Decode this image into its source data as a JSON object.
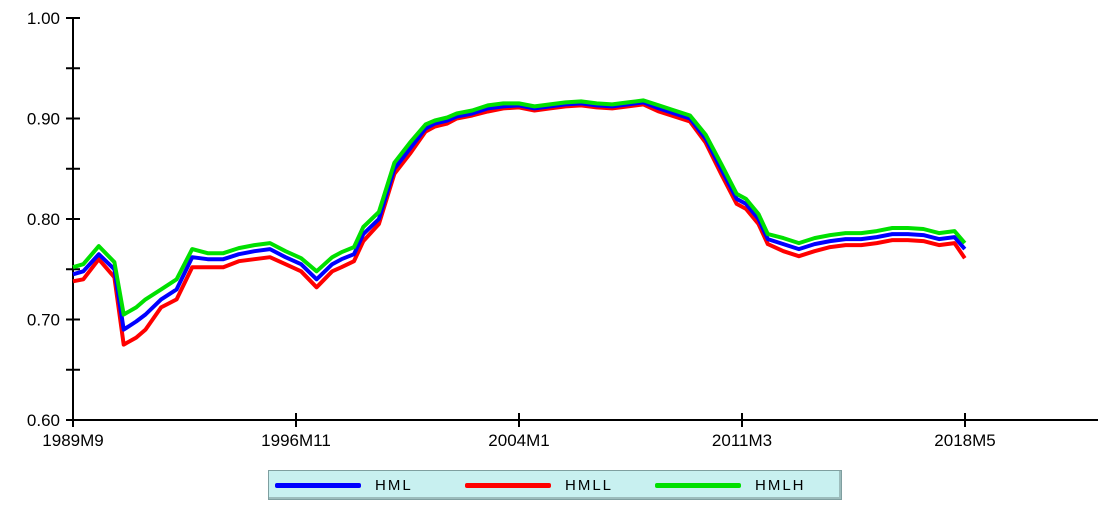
{
  "chart_data": {
    "type": "line",
    "title": "",
    "xlabel": "",
    "ylabel": "",
    "ylim": [
      0.6,
      1.0
    ],
    "yticks": [
      "0.60",
      "0.70",
      "0.80",
      "0.90",
      "1.00"
    ],
    "xticks": [
      "1989M9",
      "1996M11",
      "2004M1",
      "2011M3",
      "2018M5"
    ],
    "grid": false,
    "legend": "bottom-center",
    "x": [
      1989.67,
      1990.0,
      1990.5,
      1991.0,
      1991.3,
      1991.7,
      1992.0,
      1992.5,
      1993.0,
      1993.5,
      1994.0,
      1994.5,
      1995.0,
      1995.5,
      1996.0,
      1996.5,
      1997.0,
      1997.5,
      1998.0,
      1998.3,
      1998.7,
      1999.0,
      1999.5,
      2000.0,
      2000.5,
      2001.0,
      2001.3,
      2001.7,
      2002.0,
      2002.5,
      2003.0,
      2003.5,
      2004.0,
      2004.5,
      2005.0,
      2005.5,
      2006.0,
      2006.5,
      2007.0,
      2007.5,
      2008.0,
      2008.5,
      2009.0,
      2009.5,
      2010.0,
      2010.5,
      2011.0,
      2011.3,
      2011.7,
      2012.0,
      2012.5,
      2013.0,
      2013.5,
      2014.0,
      2014.5,
      2015.0,
      2015.5,
      2016.0,
      2016.5,
      2017.0,
      2017.5,
      2018.0,
      2018.33
    ],
    "series": [
      {
        "name": "HML",
        "color": "#0000ff",
        "values": [
          0.745,
          0.748,
          0.765,
          0.75,
          0.69,
          0.698,
          0.705,
          0.72,
          0.73,
          0.762,
          0.76,
          0.76,
          0.765,
          0.768,
          0.77,
          0.762,
          0.755,
          0.74,
          0.755,
          0.76,
          0.765,
          0.785,
          0.8,
          0.85,
          0.87,
          0.89,
          0.895,
          0.898,
          0.902,
          0.905,
          0.91,
          0.912,
          0.913,
          0.91,
          0.912,
          0.914,
          0.915,
          0.913,
          0.912,
          0.914,
          0.916,
          0.91,
          0.905,
          0.9,
          0.88,
          0.85,
          0.82,
          0.815,
          0.8,
          0.78,
          0.775,
          0.77,
          0.775,
          0.778,
          0.78,
          0.78,
          0.782,
          0.785,
          0.785,
          0.784,
          0.78,
          0.782,
          0.77
        ]
      },
      {
        "name": "HMLL",
        "color": "#ff0000",
        "values": [
          0.738,
          0.74,
          0.76,
          0.742,
          0.675,
          0.682,
          0.69,
          0.712,
          0.72,
          0.752,
          0.752,
          0.752,
          0.758,
          0.76,
          0.762,
          0.755,
          0.748,
          0.732,
          0.748,
          0.752,
          0.758,
          0.778,
          0.795,
          0.845,
          0.865,
          0.887,
          0.892,
          0.895,
          0.9,
          0.903,
          0.907,
          0.91,
          0.911,
          0.908,
          0.91,
          0.912,
          0.913,
          0.911,
          0.91,
          0.912,
          0.914,
          0.907,
          0.902,
          0.897,
          0.876,
          0.845,
          0.815,
          0.81,
          0.795,
          0.775,
          0.768,
          0.763,
          0.768,
          0.772,
          0.774,
          0.774,
          0.776,
          0.779,
          0.779,
          0.778,
          0.774,
          0.776,
          0.761
        ]
      },
      {
        "name": "HMLH",
        "color": "#00e000",
        "values": [
          0.752,
          0.755,
          0.773,
          0.757,
          0.705,
          0.712,
          0.72,
          0.73,
          0.74,
          0.77,
          0.766,
          0.766,
          0.771,
          0.774,
          0.776,
          0.768,
          0.761,
          0.748,
          0.762,
          0.767,
          0.772,
          0.792,
          0.807,
          0.856,
          0.876,
          0.894,
          0.898,
          0.901,
          0.905,
          0.908,
          0.913,
          0.915,
          0.915,
          0.912,
          0.914,
          0.916,
          0.917,
          0.915,
          0.914,
          0.916,
          0.918,
          0.913,
          0.908,
          0.903,
          0.884,
          0.855,
          0.825,
          0.82,
          0.805,
          0.785,
          0.781,
          0.776,
          0.781,
          0.784,
          0.786,
          0.786,
          0.788,
          0.791,
          0.791,
          0.79,
          0.786,
          0.788,
          0.776
        ]
      }
    ]
  }
}
